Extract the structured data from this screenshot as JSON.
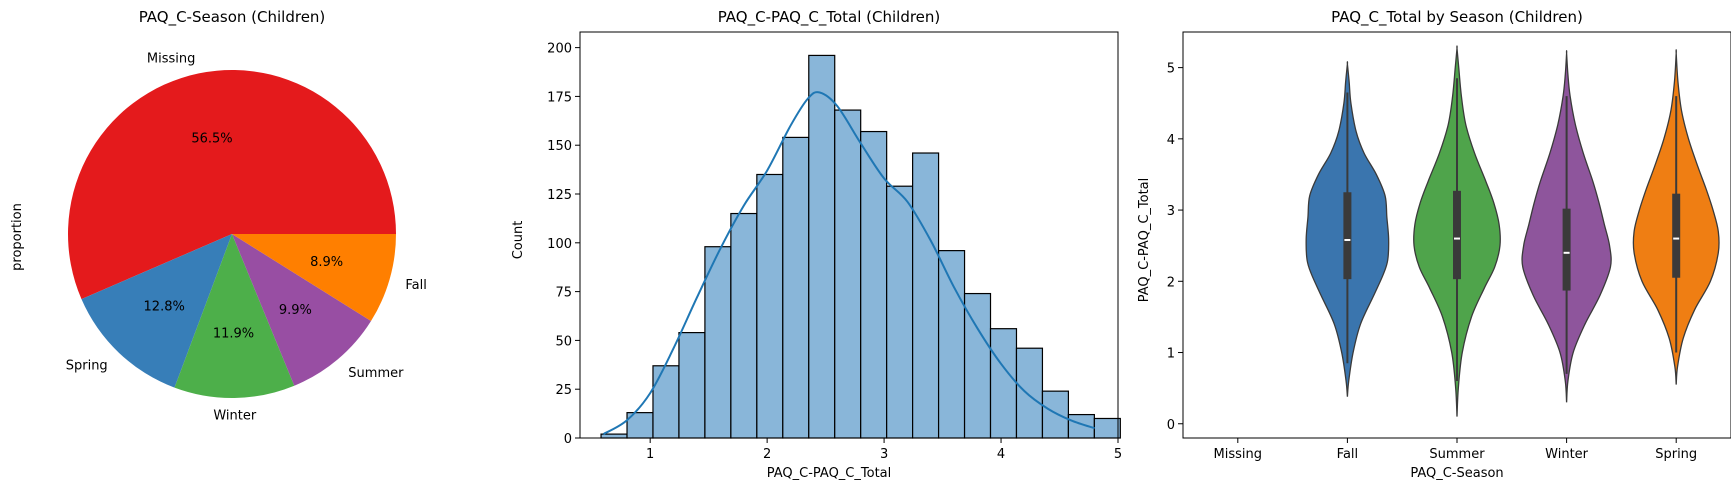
{
  "chart_data": [
    {
      "type": "pie",
      "title": "PAQ_C-Season (Children)",
      "ylabel": "proportion",
      "slices": [
        {
          "label": "Missing",
          "value": 56.5,
          "pct_label": "56.5%",
          "color": "#e41a1c"
        },
        {
          "label": "Spring",
          "value": 12.8,
          "pct_label": "12.8%",
          "color": "#377eb8"
        },
        {
          "label": "Winter",
          "value": 11.9,
          "pct_label": "11.9%",
          "color": "#4daf4a"
        },
        {
          "label": "Summer",
          "value": 9.9,
          "pct_label": "9.9%",
          "color": "#984ea3"
        },
        {
          "label": "Fall",
          "value": 8.9,
          "pct_label": "8.9%",
          "color": "#ff7f00"
        }
      ]
    },
    {
      "type": "bar",
      "subtype": "histogram",
      "title": "PAQ_C-PAQ_C_Total (Children)",
      "xlabel": "PAQ_C-PAQ_C_Total",
      "ylabel": "Count",
      "bin_start": 0.58,
      "bin_width": 0.222,
      "counts": [
        2,
        13,
        37,
        54,
        98,
        115,
        135,
        154,
        196,
        168,
        157,
        129,
        146,
        96,
        74,
        56,
        46,
        24,
        12,
        10
      ],
      "kde": [
        [
          0.6,
          2
        ],
        [
          0.8,
          9
        ],
        [
          1.0,
          23
        ],
        [
          1.2,
          46
        ],
        [
          1.4,
          72
        ],
        [
          1.6,
          97
        ],
        [
          1.8,
          119
        ],
        [
          2.0,
          137
        ],
        [
          2.2,
          160
        ],
        [
          2.35,
          174
        ],
        [
          2.45,
          177
        ],
        [
          2.6,
          170
        ],
        [
          2.8,
          151
        ],
        [
          3.0,
          133
        ],
        [
          3.2,
          121
        ],
        [
          3.4,
          101
        ],
        [
          3.6,
          77
        ],
        [
          3.8,
          56
        ],
        [
          4.0,
          38
        ],
        [
          4.2,
          24
        ],
        [
          4.4,
          15
        ],
        [
          4.6,
          9
        ],
        [
          4.8,
          5
        ]
      ],
      "xlim": [
        0.4,
        5.0
      ],
      "ylim": [
        0,
        208
      ],
      "xticks": [
        1,
        2,
        3,
        4,
        5
      ],
      "yticks": [
        0,
        25,
        50,
        75,
        100,
        125,
        150,
        175,
        200
      ],
      "bar_color": "#89b6d9",
      "line_color": "#1f77b4"
    },
    {
      "type": "violin",
      "title": "PAQ_C_Total by Season (Children)",
      "xlabel": "PAQ_C-Season",
      "ylabel": "PAQ_C-PAQ_C_Total",
      "categories": [
        "Missing",
        "Fall",
        "Summer",
        "Winter",
        "Spring"
      ],
      "ylim": [
        -0.2,
        5.5
      ],
      "yticks": [
        0,
        1,
        2,
        3,
        4,
        5
      ],
      "violins": [
        {
          "category": "Missing",
          "color": null,
          "min": null,
          "max": null,
          "q1": null,
          "median": null,
          "q3": null,
          "profile": []
        },
        {
          "category": "Fall",
          "color": "#3a75ae",
          "min": 0.38,
          "max": 5.05,
          "q1": 2.03,
          "median": 2.58,
          "q3": 3.25,
          "whisker_low": 0.85,
          "whisker_high": 4.65,
          "profile": [
            [
              0.38,
              0.0
            ],
            [
              0.6,
              0.03
            ],
            [
              1.0,
              0.13
            ],
            [
              1.4,
              0.3
            ],
            [
              1.8,
              0.6
            ],
            [
              2.1,
              0.82
            ],
            [
              2.3,
              0.92
            ],
            [
              2.6,
              0.94
            ],
            [
              2.9,
              0.9
            ],
            [
              3.2,
              0.86
            ],
            [
              3.5,
              0.66
            ],
            [
              3.8,
              0.38
            ],
            [
              4.1,
              0.2
            ],
            [
              4.5,
              0.08
            ],
            [
              4.8,
              0.04
            ],
            [
              5.05,
              0.0
            ]
          ]
        },
        {
          "category": "Summer",
          "color": "#4fa44b",
          "min": 0.1,
          "max": 5.27,
          "q1": 2.03,
          "median": 2.6,
          "q3": 3.27,
          "whisker_low": 0.6,
          "whisker_high": 4.85,
          "profile": [
            [
              0.1,
              0.0
            ],
            [
              0.5,
              0.03
            ],
            [
              1.0,
              0.12
            ],
            [
              1.5,
              0.33
            ],
            [
              1.9,
              0.62
            ],
            [
              2.2,
              0.86
            ],
            [
              2.5,
              0.98
            ],
            [
              2.8,
              0.96
            ],
            [
              3.1,
              0.84
            ],
            [
              3.4,
              0.66
            ],
            [
              3.8,
              0.4
            ],
            [
              4.2,
              0.2
            ],
            [
              4.6,
              0.1
            ],
            [
              5.0,
              0.04
            ],
            [
              5.27,
              0.0
            ]
          ]
        },
        {
          "category": "Winter",
          "color": "#8e559c",
          "min": 0.3,
          "max": 5.2,
          "q1": 1.87,
          "median": 2.4,
          "q3": 3.02,
          "whisker_low": 0.7,
          "whisker_high": 4.6,
          "profile": [
            [
              0.3,
              0.0
            ],
            [
              0.6,
              0.03
            ],
            [
              1.0,
              0.15
            ],
            [
              1.4,
              0.42
            ],
            [
              1.8,
              0.76
            ],
            [
              2.2,
              1.0
            ],
            [
              2.5,
              0.98
            ],
            [
              2.8,
              0.86
            ],
            [
              3.1,
              0.74
            ],
            [
              3.4,
              0.6
            ],
            [
              3.8,
              0.38
            ],
            [
              4.2,
              0.2
            ],
            [
              4.6,
              0.08
            ],
            [
              4.9,
              0.03
            ],
            [
              5.2,
              0.0
            ]
          ]
        },
        {
          "category": "Spring",
          "color": "#ef7e13",
          "min": 0.55,
          "max": 5.2,
          "q1": 2.05,
          "median": 2.6,
          "q3": 3.23,
          "whisker_low": 1.0,
          "whisker_high": 4.6,
          "profile": [
            [
              0.55,
              0.0
            ],
            [
              0.8,
              0.03
            ],
            [
              1.2,
              0.16
            ],
            [
              1.6,
              0.42
            ],
            [
              2.0,
              0.78
            ],
            [
              2.4,
              0.96
            ],
            [
              2.7,
              0.96
            ],
            [
              3.0,
              0.84
            ],
            [
              3.3,
              0.68
            ],
            [
              3.6,
              0.5
            ],
            [
              4.0,
              0.28
            ],
            [
              4.4,
              0.12
            ],
            [
              4.8,
              0.04
            ],
            [
              5.2,
              0.0
            ]
          ]
        }
      ]
    }
  ]
}
